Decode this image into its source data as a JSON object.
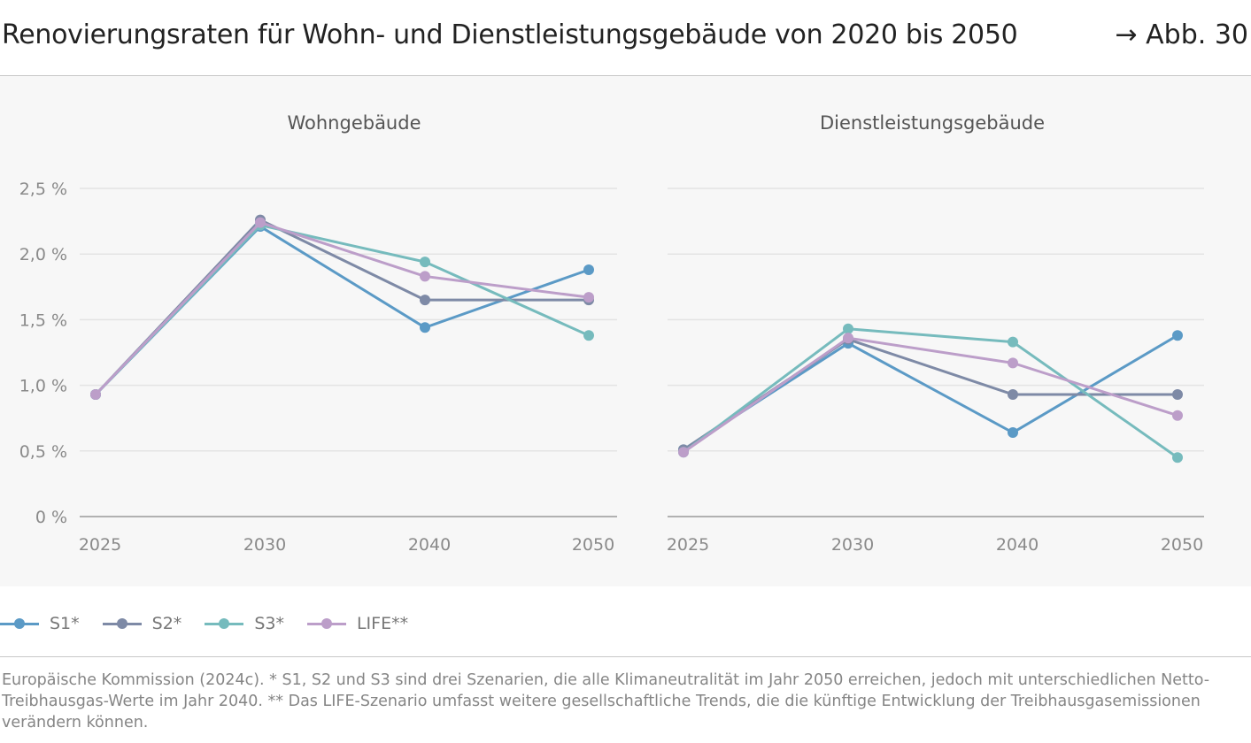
{
  "header": {
    "title": "Renovierungsraten für Wohn- und Dienstleistungsgebäude von 2020 bis 2050",
    "figure_ref": "→ Abb. 30"
  },
  "colors": {
    "S1*": "#5b9ac6",
    "S2*": "#7e8aa6",
    "S3*": "#76bbbd",
    "LIFE**": "#bc9ec9",
    "grid": "#e4e4e4",
    "axis": "#9a9a9a",
    "tick_text": "#8a8a8a",
    "panel_background": "#f7f7f7"
  },
  "legend": {
    "position": "bottom-left",
    "items": [
      {
        "label": "S1*",
        "color": "#5b9ac6"
      },
      {
        "label": "S2*",
        "color": "#7e8aa6"
      },
      {
        "label": "S3*",
        "color": "#76bbbd"
      },
      {
        "label": "LIFE**",
        "color": "#bc9ec9"
      }
    ]
  },
  "chart_data": [
    {
      "type": "line",
      "title": "Wohngebäude",
      "categories": [
        "2025",
        "2030",
        "2040",
        "2050"
      ],
      "ylim": [
        0,
        2.5
      ],
      "yticks": [
        0,
        0.5,
        1.0,
        1.5,
        2.0,
        2.5
      ],
      "ytick_labels": [
        "0 %",
        "0,5 %",
        "1,0 %",
        "1,5 %",
        "2,0 %",
        "2,5 %"
      ],
      "grid": true,
      "series": [
        {
          "name": "S1*",
          "values": [
            0.93,
            2.21,
            1.44,
            1.88
          ]
        },
        {
          "name": "S2*",
          "values": [
            0.93,
            2.26,
            1.65,
            1.65
          ]
        },
        {
          "name": "S3*",
          "values": [
            0.93,
            2.22,
            1.94,
            1.38
          ]
        },
        {
          "name": "LIFE**",
          "values": [
            0.93,
            2.24,
            1.83,
            1.67
          ]
        }
      ]
    },
    {
      "type": "line",
      "title": "Dienstleistungsgebäude",
      "categories": [
        "2025",
        "2030",
        "2040",
        "2050"
      ],
      "ylim": [
        0,
        2.5
      ],
      "yticks": [
        0,
        0.5,
        1.0,
        1.5,
        2.0,
        2.5
      ],
      "ytick_labels": [],
      "grid": true,
      "series": [
        {
          "name": "S1*",
          "values": [
            0.51,
            1.32,
            0.64,
            1.38
          ]
        },
        {
          "name": "S2*",
          "values": [
            0.51,
            1.35,
            0.93,
            0.93
          ]
        },
        {
          "name": "S3*",
          "values": [
            0.49,
            1.43,
            1.33,
            0.45
          ]
        },
        {
          "name": "LIFE**",
          "values": [
            0.49,
            1.36,
            1.17,
            0.77
          ]
        }
      ]
    }
  ],
  "footnote": "Europäische Kommission (2024c). * S1, S2 und S3 sind drei Szenarien, die alle Klimaneutralität im Jahr 2050 erreichen, jedoch mit unterschiedlichen Netto-Treibhausgas-Werte im Jahr 2040. ** Das LIFE-Szenario umfasst weitere gesellschaftliche Trends, die die künftige Entwicklung der Treib­hausgasemissionen verändern können."
}
